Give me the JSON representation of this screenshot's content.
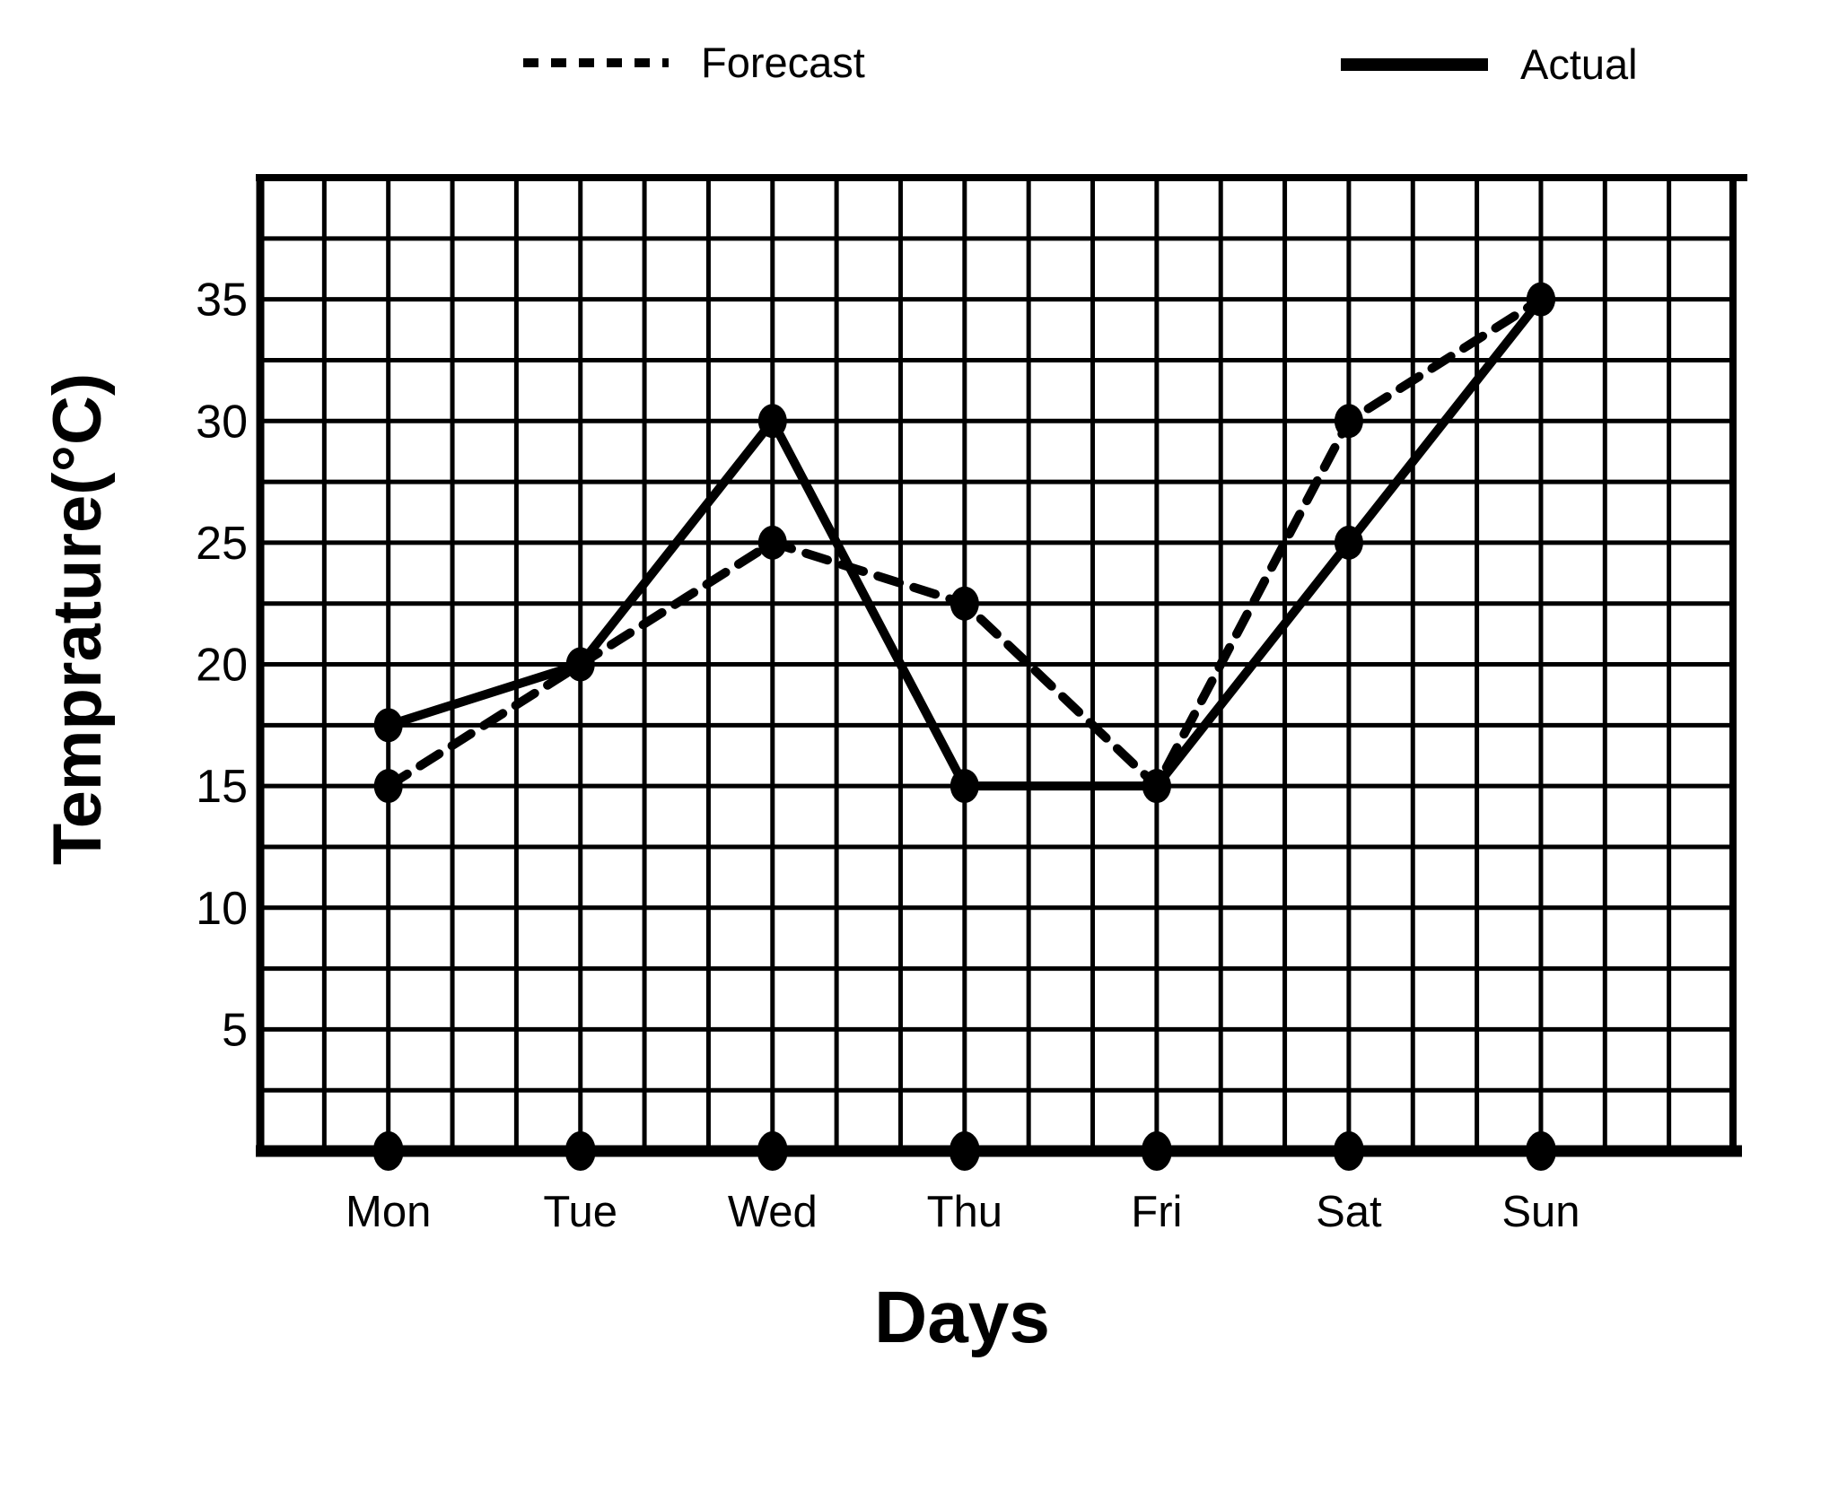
{
  "page": {
    "background": "#ffffff",
    "ink": "#000000"
  },
  "chart_data": {
    "type": "line",
    "title": "",
    "xlabel": "Days",
    "ylabel": "Temprature(°C)",
    "categories": [
      "Mon",
      "Tue",
      "Wed",
      "Thu",
      "Fri",
      "Sat",
      "Sun"
    ],
    "series": [
      {
        "name": "Forecast",
        "line_style": "dashed",
        "marker": "filled-dot",
        "values": [
          15,
          20,
          25,
          22.5,
          15,
          30,
          35
        ]
      },
      {
        "name": "Actual",
        "line_style": "solid",
        "marker": "filled-dot",
        "values": [
          17.5,
          20,
          30,
          15,
          15,
          25,
          35
        ]
      }
    ],
    "yticks": [
      35,
      30,
      25,
      20,
      15,
      10,
      5
    ],
    "ylim": [
      0,
      40
    ],
    "y_minor_step": 2.5,
    "grid": true,
    "grid_color": "#000000",
    "line_color": "#000000",
    "legend_position": "top",
    "x_axis_markers": "dot-per-day"
  }
}
